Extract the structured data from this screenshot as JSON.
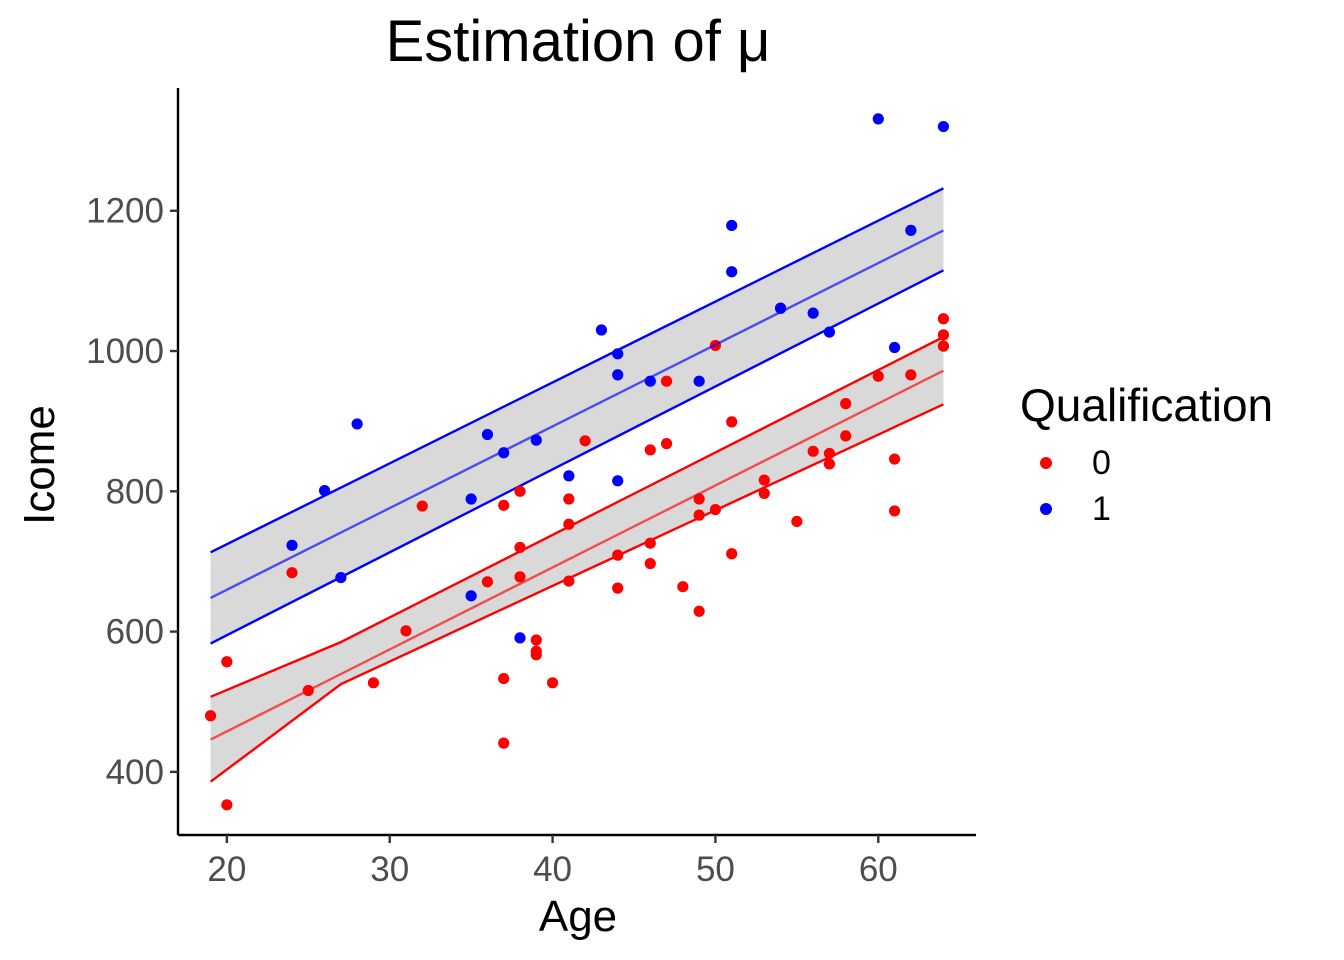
{
  "chart_data": {
    "type": "scatter",
    "title": "Estimation of μ",
    "xlabel": "Age",
    "ylabel": "Icome",
    "xlim": [
      17,
      66
    ],
    "ylim": [
      310,
      1375
    ],
    "x_ticks": [
      20,
      30,
      40,
      50,
      60
    ],
    "y_ticks": [
      400,
      600,
      800,
      1000,
      1200
    ],
    "grid": false,
    "legend": {
      "title": "Qualification",
      "placement": "right",
      "entries": [
        {
          "label": "0",
          "color": "#ff0000"
        },
        {
          "label": "1",
          "color": "#0000ff"
        }
      ]
    },
    "series": [
      {
        "name": "0",
        "color": "#ff0000",
        "points": [
          [
            19,
            480
          ],
          [
            20,
            557
          ],
          [
            20,
            353
          ],
          [
            24,
            684
          ],
          [
            25,
            516
          ],
          [
            29,
            527
          ],
          [
            31,
            601
          ],
          [
            32,
            779
          ],
          [
            36,
            671
          ],
          [
            37,
            780
          ],
          [
            37,
            533
          ],
          [
            37,
            441
          ],
          [
            38,
            800
          ],
          [
            38,
            720
          ],
          [
            38,
            678
          ],
          [
            39,
            588
          ],
          [
            39,
            572
          ],
          [
            39,
            567
          ],
          [
            40,
            527
          ],
          [
            41,
            789
          ],
          [
            41,
            753
          ],
          [
            41,
            672
          ],
          [
            42,
            872
          ],
          [
            44,
            709
          ],
          [
            44,
            662
          ],
          [
            46,
            859
          ],
          [
            46,
            726
          ],
          [
            46,
            697
          ],
          [
            47,
            957
          ],
          [
            47,
            868
          ],
          [
            48,
            664
          ],
          [
            49,
            789
          ],
          [
            49,
            766
          ],
          [
            49,
            629
          ],
          [
            50,
            1008
          ],
          [
            50,
            774
          ],
          [
            51,
            899
          ],
          [
            51,
            711
          ],
          [
            53,
            816
          ],
          [
            53,
            797
          ],
          [
            54,
            1061
          ],
          [
            55,
            757
          ],
          [
            56,
            857
          ],
          [
            57,
            854
          ],
          [
            57,
            839
          ],
          [
            58,
            925
          ],
          [
            58,
            879
          ],
          [
            60,
            964
          ],
          [
            61,
            846
          ],
          [
            61,
            772
          ],
          [
            62,
            966
          ],
          [
            64,
            1046
          ],
          [
            64,
            1023
          ],
          [
            64,
            1007
          ]
        ],
        "fit": {
          "x": [
            19,
            64
          ],
          "mean": [
            446,
            972
          ],
          "lower": [
            386,
            924
          ],
          "upper": [
            507,
            1020
          ],
          "mid_x": 27,
          "mid_lower": 525,
          "mid_upper": 585
        }
      },
      {
        "name": "1",
        "color": "#0000ff",
        "points": [
          [
            24,
            723
          ],
          [
            26,
            801
          ],
          [
            27,
            677
          ],
          [
            28,
            896
          ],
          [
            35,
            789
          ],
          [
            35,
            651
          ],
          [
            36,
            881
          ],
          [
            37,
            855
          ],
          [
            38,
            591
          ],
          [
            39,
            873
          ],
          [
            41,
            822
          ],
          [
            43,
            1030
          ],
          [
            44,
            996
          ],
          [
            44,
            966
          ],
          [
            44,
            815
          ],
          [
            46,
            957
          ],
          [
            49,
            957
          ],
          [
            51,
            1179
          ],
          [
            51,
            1113
          ],
          [
            54,
            1061
          ],
          [
            56,
            1054
          ],
          [
            57,
            1027
          ],
          [
            60,
            1331
          ],
          [
            61,
            1005
          ],
          [
            62,
            1172
          ],
          [
            64,
            1320
          ]
        ],
        "fit": {
          "x": [
            19,
            64
          ],
          "mean": [
            648,
            1172
          ],
          "lower": [
            583,
            1115
          ],
          "upper": [
            713,
            1232
          ]
        }
      }
    ]
  }
}
